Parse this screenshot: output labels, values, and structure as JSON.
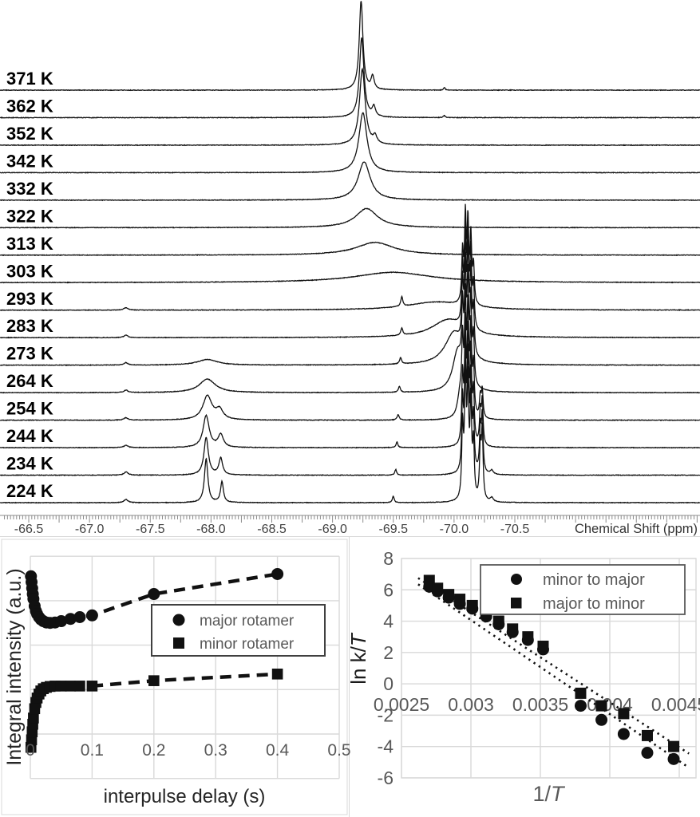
{
  "nmr_panel": {
    "axis_title": "Chemical Shift (ppm)",
    "tick_labels": [
      "-66.5",
      "-67.0",
      "-67.5",
      "-68.0",
      "-68.5",
      "-69.0",
      "-69.5",
      "-70.0",
      "-70.5"
    ],
    "temperature_labels": [
      "371 K",
      "362 K",
      "352 K",
      "342 K",
      "332 K",
      "322 K",
      "313 K",
      "303 K",
      "293 K",
      "283 K",
      "273 K",
      "264 K",
      "254 K",
      "244 K",
      "234 K",
      "224 K"
    ],
    "spectra": [
      {
        "temp": "371 K",
        "peaks": [
          [
            -69.235,
            112,
            0.018
          ],
          [
            -69.33,
            16,
            0.015
          ],
          [
            -69.92,
            3,
            0.008
          ]
        ]
      },
      {
        "temp": "362 K",
        "peaks": [
          [
            -69.24,
            100,
            0.022
          ],
          [
            -69.34,
            12,
            0.016
          ],
          [
            -69.92,
            3,
            0.008
          ]
        ]
      },
      {
        "temp": "352 K",
        "peaks": [
          [
            -69.245,
            95,
            0.028
          ],
          [
            -69.35,
            9,
            0.018
          ]
        ]
      },
      {
        "temp": "342 K",
        "peaks": [
          [
            -69.25,
            75,
            0.04
          ]
        ]
      },
      {
        "temp": "332 K",
        "peaks": [
          [
            -69.26,
            48,
            0.06
          ]
        ]
      },
      {
        "temp": "322 K",
        "peaks": [
          [
            -69.28,
            24,
            0.11
          ]
        ]
      },
      {
        "temp": "313 K",
        "peaks": [
          [
            -69.35,
            16,
            0.19
          ]
        ]
      },
      {
        "temp": "303 K",
        "peaks": [
          [
            -69.5,
            13,
            0.38
          ]
        ]
      },
      {
        "temp": "293 K",
        "peaks": [
          [
            -67.3,
            3,
            0.02
          ],
          [
            -69.57,
            12,
            0.01
          ],
          [
            -69.85,
            10,
            0.28
          ],
          [
            -70.07,
            63,
            0.008
          ],
          [
            -70.093,
            105,
            0.008
          ],
          [
            -70.114,
            97,
            0.008
          ],
          [
            -70.138,
            82,
            0.008
          ],
          [
            -70.16,
            47,
            0.008
          ]
        ]
      },
      {
        "temp": "283 K",
        "peaks": [
          [
            -67.3,
            3,
            0.02
          ],
          [
            -69.57,
            9,
            0.01
          ],
          [
            -69.95,
            22,
            0.16
          ],
          [
            -70.07,
            71,
            0.008
          ],
          [
            -70.093,
            118,
            0.008
          ],
          [
            -70.114,
            109,
            0.008
          ],
          [
            -70.138,
            92,
            0.008
          ],
          [
            -70.16,
            53,
            0.008
          ]
        ]
      },
      {
        "temp": "273 K",
        "peaks": [
          [
            -67.3,
            3,
            0.02
          ],
          [
            -67.97,
            7,
            0.1
          ],
          [
            -69.56,
            8,
            0.01
          ],
          [
            -70.0,
            40,
            0.09
          ],
          [
            -70.07,
            75,
            0.008
          ],
          [
            -70.093,
            125,
            0.008
          ],
          [
            -70.114,
            115,
            0.008
          ],
          [
            -70.138,
            98,
            0.008
          ],
          [
            -70.16,
            56,
            0.008
          ]
        ]
      },
      {
        "temp": "264 K",
        "peaks": [
          [
            -67.3,
            3,
            0.02
          ],
          [
            -67.97,
            17,
            0.08
          ],
          [
            -69.55,
            7,
            0.01
          ],
          [
            -70.03,
            50,
            0.05
          ],
          [
            -70.07,
            78,
            0.008
          ],
          [
            -70.093,
            130,
            0.008
          ],
          [
            -70.114,
            120,
            0.008
          ],
          [
            -70.138,
            101,
            0.008
          ],
          [
            -70.16,
            59,
            0.008
          ]
        ]
      },
      {
        "temp": "254 K",
        "peaks": [
          [
            -67.3,
            3,
            0.02
          ],
          [
            -67.97,
            30,
            0.045
          ],
          [
            -68.07,
            12,
            0.035
          ],
          [
            -69.54,
            7,
            0.01
          ],
          [
            -70.05,
            30,
            0.025
          ],
          [
            -70.07,
            81,
            0.008
          ],
          [
            -70.093,
            135,
            0.008
          ],
          [
            -70.114,
            124,
            0.008
          ],
          [
            -70.138,
            105,
            0.008
          ],
          [
            -70.16,
            61,
            0.008
          ],
          [
            -70.216,
            26,
            0.008
          ],
          [
            -70.232,
            35,
            0.008
          ]
        ]
      },
      {
        "temp": "244 K",
        "peaks": [
          [
            -67.3,
            3,
            0.02
          ],
          [
            -67.96,
            40,
            0.03
          ],
          [
            -68.08,
            16,
            0.025
          ],
          [
            -69.53,
            7,
            0.009
          ],
          [
            -70.07,
            84,
            0.008
          ],
          [
            -70.093,
            140,
            0.008
          ],
          [
            -70.114,
            129,
            0.008
          ],
          [
            -70.138,
            109,
            0.008
          ],
          [
            -70.16,
            63,
            0.008
          ],
          [
            -70.216,
            41,
            0.008
          ],
          [
            -70.232,
            55,
            0.008
          ]
        ]
      },
      {
        "temp": "234 K",
        "peaks": [
          [
            -67.3,
            4,
            0.02
          ],
          [
            -67.96,
            47,
            0.022
          ],
          [
            -68.08,
            21,
            0.018
          ],
          [
            -69.52,
            7,
            0.009
          ],
          [
            -70.07,
            87,
            0.008
          ],
          [
            -70.093,
            145,
            0.008
          ],
          [
            -70.114,
            133,
            0.008
          ],
          [
            -70.138,
            113,
            0.008
          ],
          [
            -70.16,
            65,
            0.008
          ],
          [
            -70.216,
            53,
            0.008
          ],
          [
            -70.232,
            70,
            0.008
          ],
          [
            -70.31,
            5,
            0.015
          ]
        ]
      },
      {
        "temp": "224 K",
        "peaks": [
          [
            -67.3,
            4,
            0.02
          ],
          [
            -67.96,
            55,
            0.017
          ],
          [
            -68.09,
            26,
            0.014
          ],
          [
            -69.5,
            8,
            0.009
          ],
          [
            -70.07,
            90,
            0.008
          ],
          [
            -70.093,
            150,
            0.008
          ],
          [
            -70.114,
            138,
            0.008
          ],
          [
            -70.138,
            117,
            0.008
          ],
          [
            -70.16,
            68,
            0.008
          ],
          [
            -70.216,
            64,
            0.008
          ],
          [
            -70.232,
            85,
            0.008
          ],
          [
            -70.31,
            5,
            0.015
          ]
        ]
      }
    ]
  },
  "chart_data": [
    {
      "type": "line",
      "name": "vt-nmr-stack",
      "title": "",
      "xlabel": "Chemical Shift (ppm)",
      "x_ticks": [
        -66.5,
        -67.0,
        -67.5,
        -68.0,
        -68.5,
        -69.0,
        -69.5,
        -70.0,
        -70.5
      ],
      "note": "stacked 19F NMR spectra, peak list per temperature stored in nmr_panel.spectra as [ppm, rel_intensity, hwhm_ppm]"
    },
    {
      "type": "scatter",
      "name": "saturation-recovery",
      "xlabel": "interpulse delay (s)",
      "ylabel": "Integral intensity (a.u.)",
      "x_ticks": [
        "0",
        "0.1",
        "0.2",
        "0.3",
        "0.4",
        "0.5"
      ],
      "xlim": [
        0,
        0.5
      ],
      "ylim": [
        -1,
        4
      ],
      "grid": true,
      "legend_position": "right-center",
      "x": [
        0.001,
        0.002,
        0.003,
        0.004,
        0.005,
        0.007,
        0.009,
        0.011,
        0.014,
        0.017,
        0.021,
        0.026,
        0.032,
        0.04,
        0.05,
        0.065,
        0.08,
        0.1,
        0.2,
        0.4
      ],
      "series": [
        {
          "name": "major rotamer",
          "marker": "circle",
          "values": [
            3.55,
            3.42,
            3.28,
            3.15,
            3.04,
            2.88,
            2.77,
            2.7,
            2.63,
            2.58,
            2.54,
            2.51,
            2.5,
            2.51,
            2.54,
            2.59,
            2.63,
            2.67,
            3.15,
            3.6
          ]
        },
        {
          "name": "minor rotamer",
          "marker": "square",
          "values": [
            -0.3,
            -0.13,
            0.05,
            0.22,
            0.36,
            0.57,
            0.71,
            0.81,
            0.9,
            0.97,
            1.02,
            1.05,
            1.07,
            1.08,
            1.08,
            1.08,
            1.08,
            1.08,
            1.2,
            1.35
          ]
        }
      ]
    },
    {
      "type": "scatter",
      "name": "eyring-plot",
      "xlabel": "1/T",
      "ylabel": "ln k/T",
      "x_ticks": [
        "0.0025",
        "0.003",
        "0.0035",
        "0.004",
        "0.0045"
      ],
      "y_ticks": [
        "8",
        "6",
        "4",
        "2",
        "0",
        "-2",
        "-4",
        "-6"
      ],
      "xlim": [
        0.0025,
        0.00471
      ],
      "ylim": [
        -6,
        8
      ],
      "grid": true,
      "legend_position": "top-right",
      "x": [
        0.0027,
        0.00276,
        0.00284,
        0.00292,
        0.00301,
        0.00311,
        0.0032,
        0.0033,
        0.00341,
        0.00352,
        0.00379,
        0.00394,
        0.0041,
        0.00427,
        0.00446
      ],
      "series": [
        {
          "name": "minor to major",
          "marker": "circle",
          "values": [
            6.2,
            5.9,
            5.5,
            5.1,
            4.8,
            4.3,
            3.8,
            3.3,
            2.8,
            2.2,
            -1.4,
            -2.3,
            -3.2,
            -4.4,
            -4.8
          ],
          "trend": {
            "x1": 0.00262,
            "y1": 6.35,
            "x2": 0.00457,
            "y2": -5.35
          }
        },
        {
          "name": "major to minor",
          "marker": "square",
          "values": [
            6.6,
            6.1,
            5.7,
            5.4,
            5.0,
            4.5,
            4.0,
            3.5,
            3.0,
            2.4,
            -0.6,
            -1.4,
            -1.9,
            -3.3,
            -4.0
          ],
          "trend": {
            "x1": 0.00262,
            "y1": 6.75,
            "x2": 0.00457,
            "y2": -4.45
          }
        }
      ]
    }
  ],
  "colors": {
    "trace": "#111111",
    "marker": "#111111",
    "gridline": "#d9d9d9",
    "tick_text": "#595959",
    "nmr_tick_text": "#404040",
    "axis_title_dark": "#262626",
    "legend_border_left": "#404040",
    "legend_border_right": "#595959"
  }
}
